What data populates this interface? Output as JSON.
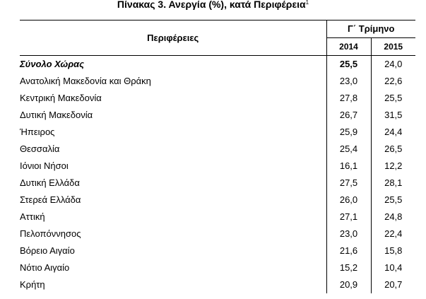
{
  "title": {
    "text": "Πίνακας 3. Ανεργία (%), κατά Περιφέρεια",
    "footnote_mark": "1"
  },
  "table": {
    "region_header": "Περιφέρειες",
    "period_header": "Γ΄ Τρίμηνο",
    "years": [
      "2014",
      "2015"
    ],
    "rows": [
      {
        "region": "Σύνολο Χώρας",
        "y2014": "25,5",
        "y2015": "24,0"
      },
      {
        "region": "Ανατολική Μακεδονία και Θράκη",
        "y2014": "23,0",
        "y2015": "22,6"
      },
      {
        "region": "Κεντρική Μακεδονία",
        "y2014": "27,8",
        "y2015": "25,5"
      },
      {
        "region": "Δυτική Μακεδονία",
        "y2014": "26,7",
        "y2015": "31,5"
      },
      {
        "region": "Ήπειρος",
        "y2014": "25,9",
        "y2015": "24,4"
      },
      {
        "region": "Θεσσαλία",
        "y2014": "25,4",
        "y2015": "26,5"
      },
      {
        "region": "Ιόνιοι Νήσοι",
        "y2014": "16,1",
        "y2015": "12,2"
      },
      {
        "region": "Δυτική Ελλάδα",
        "y2014": "27,5",
        "y2015": "28,1"
      },
      {
        "region": "Στερεά Ελλάδα",
        "y2014": "26,0",
        "y2015": "25,5"
      },
      {
        "region": "Αττική",
        "y2014": "27,1",
        "y2015": "24,8"
      },
      {
        "region": "Πελοπόννησος",
        "y2014": "23,0",
        "y2015": "22,4"
      },
      {
        "region": "Βόρειο Αιγαίο",
        "y2014": "21,6",
        "y2015": "15,8"
      },
      {
        "region": "Νότιο Αιγαίο",
        "y2014": "15,2",
        "y2015": "10,4"
      },
      {
        "region": "Κρήτη",
        "y2014": "20,9",
        "y2015": "20,7"
      }
    ]
  }
}
